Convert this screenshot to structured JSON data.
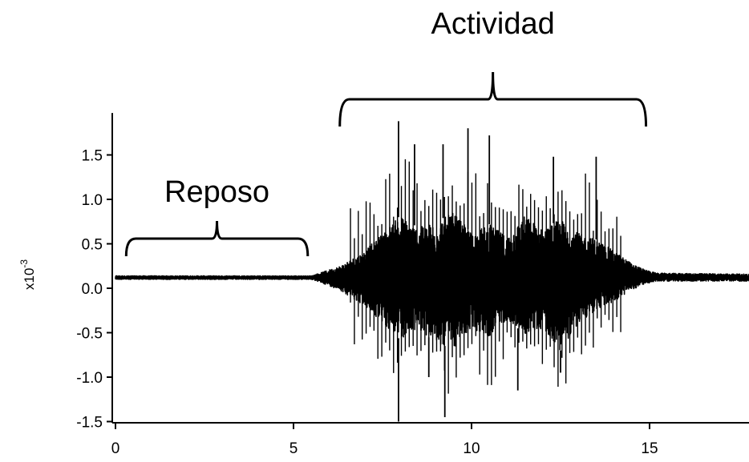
{
  "chart_data": {
    "type": "line",
    "title": "",
    "xlabel": "",
    "ylabel": "x10",
    "ylabel_exponent": "-3",
    "xlim": [
      0,
      17.8
    ],
    "ylim": [
      -1.5,
      1.9
    ],
    "x_ticks": [
      0,
      5,
      10,
      15
    ],
    "y_ticks": [
      -1.5,
      -1.0,
      -0.5,
      0.0,
      0.5,
      1.0,
      1.5
    ],
    "x_tick_labels": [
      "0",
      "5",
      "10",
      "15"
    ],
    "y_tick_labels": [
      "-1.5",
      "-1.0",
      "-0.5",
      "0.0",
      "0.5",
      "1.0",
      "1.5"
    ],
    "grid": false,
    "line_color": "#000000",
    "baseline": 0.12,
    "series": [
      {
        "envelope": {
          "x": [
            0,
            5.5,
            5.8,
            6.3,
            7.0,
            7.5,
            8.0,
            8.5,
            9.0,
            9.5,
            10.0,
            10.5,
            11.0,
            11.5,
            12.0,
            12.5,
            13.0,
            13.5,
            14.0,
            14.5,
            14.8,
            15.2,
            17.8
          ],
          "upper": [
            0.14,
            0.14,
            0.18,
            0.25,
            0.42,
            0.62,
            0.82,
            0.68,
            0.75,
            0.85,
            0.62,
            0.72,
            0.58,
            0.82,
            0.66,
            0.78,
            0.62,
            0.55,
            0.42,
            0.28,
            0.22,
            0.17,
            0.16
          ],
          "lower": [
            0.1,
            0.1,
            0.06,
            -0.02,
            -0.2,
            -0.4,
            -0.58,
            -0.45,
            -0.62,
            -0.68,
            -0.45,
            -0.55,
            -0.35,
            -0.52,
            -0.45,
            -0.7,
            -0.4,
            -0.25,
            -0.15,
            -0.02,
            0.04,
            0.08,
            0.08
          ]
        },
        "spikes": [
          {
            "x": 7.95,
            "y": 1.88
          },
          {
            "x": 7.95,
            "y": -1.5
          },
          {
            "x": 8.4,
            "y": 1.62
          },
          {
            "x": 9.2,
            "y": 1.62
          },
          {
            "x": 9.25,
            "y": -1.45
          },
          {
            "x": 9.9,
            "y": 1.8
          },
          {
            "x": 10.5,
            "y": 1.72
          },
          {
            "x": 11.3,
            "y": -1.15
          },
          {
            "x": 12.3,
            "y": 1.48
          },
          {
            "x": 12.5,
            "y": -0.95
          },
          {
            "x": 13.5,
            "y": 1.48
          },
          {
            "x": 8.8,
            "y": -1.0
          }
        ]
      }
    ],
    "annotations": [
      {
        "text": "Reposo",
        "x_start": 0.3,
        "x_end": 5.4
      },
      {
        "text": "Actividad",
        "x_start": 6.3,
        "x_end": 14.9
      }
    ]
  }
}
